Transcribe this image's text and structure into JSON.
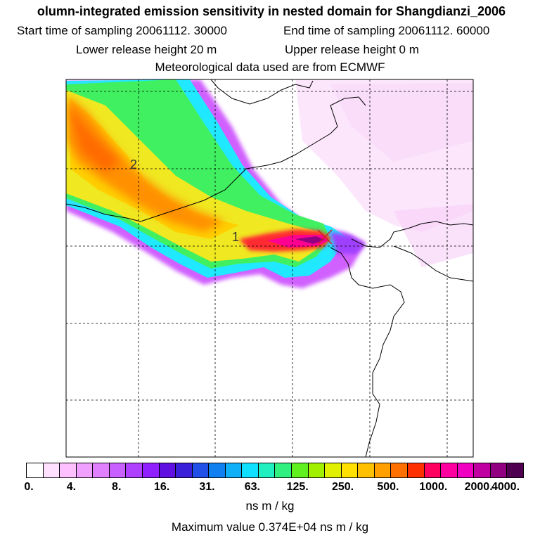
{
  "header": {
    "title": "olumn-integrated emission sensitivity in nested domain for Shangdianzi_2006",
    "start_time": "Start time of sampling 20061112. 30000",
    "end_time": "End time of sampling 20061112. 60000",
    "lower_release": "Lower release height   20 m",
    "upper_release": "Upper release height    0 m",
    "met_data": "Meteorological data used are from ECMWF"
  },
  "map": {
    "labels": [
      "1",
      "2"
    ],
    "station_marker": "receptor-cross"
  },
  "legend": {
    "colors": [
      "#ffffff",
      "#ffe0ff",
      "#ffc0ff",
      "#f0a0ff",
      "#e080ff",
      "#c860ff",
      "#b040ff",
      "#9020ff",
      "#6010e0",
      "#3a20d8",
      "#2050e8",
      "#1080f0",
      "#10b0f8",
      "#10e0ff",
      "#20f0c0",
      "#30f080",
      "#60f020",
      "#a0f000",
      "#e0f000",
      "#ffe000",
      "#ffc000",
      "#ffa000",
      "#ff7000",
      "#ff3000",
      "#ff0060",
      "#ff00a0",
      "#f000c0",
      "#c000a0",
      "#900080",
      "#500050"
    ],
    "tick_labels": [
      "0.",
      "4.",
      "8.",
      "16.",
      "31.",
      "63.",
      "125.",
      "250.",
      "500.",
      "1000.",
      "2000.",
      "4000."
    ],
    "units": "ns m / kg",
    "max_value": "Maximum value  0.374E+04 ns m / kg"
  }
}
